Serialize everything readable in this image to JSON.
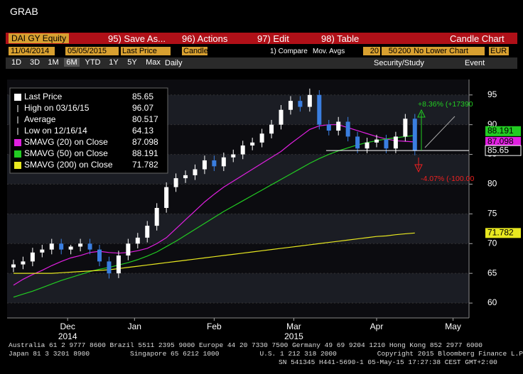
{
  "toolbar": {
    "title": "GRAB",
    "security": "DAI GY Equity",
    "menu": [
      "95) Save As...",
      "96) Actions",
      "97) Edit",
      "98) Table"
    ],
    "chart_type": "Candle Chart",
    "start_date": "11/04/2014",
    "end_date": "05/05/2015",
    "field": "Last Price",
    "style": "Candle",
    "compare": "1) Compare",
    "mov_avgs": "Mov. Avgs",
    "periods": [
      20,
      50,
      200
    ],
    "lower": "No Lower Chart",
    "currency": "EUR",
    "ranges": [
      "1D",
      "3D",
      "1M",
      "6M",
      "YTD",
      "1Y",
      "5Y",
      "Max"
    ],
    "frequency": "Daily",
    "security_study": "Security/Study",
    "event": "Event"
  },
  "chart_data": {
    "type": "candlestick",
    "x": [
      0,
      3,
      6,
      9,
      12,
      15,
      18,
      21,
      24,
      27,
      30,
      33,
      36,
      39,
      42,
      45,
      48,
      51,
      54,
      57,
      60,
      63,
      66,
      69,
      72,
      75,
      78,
      81,
      84,
      87,
      90,
      93,
      96,
      99,
      102,
      105,
      108,
      111,
      114,
      117,
      120,
      123,
      126
    ],
    "candles": {
      "name": "Last Price",
      "last": 85.65,
      "up_color": "#ffffff",
      "down_color": "#3a7ee0",
      "open": [
        66,
        66.5,
        67,
        68.5,
        69,
        70,
        69,
        69.5,
        70,
        69,
        67,
        65,
        68,
        70,
        71,
        73,
        76,
        79.5,
        81,
        81.5,
        82.5,
        84,
        83,
        84.5,
        85,
        86.5,
        87,
        88.5,
        90,
        92.5,
        94,
        93,
        95,
        90,
        89,
        90.5,
        88,
        86,
        87,
        87.5,
        86,
        88,
        91
      ],
      "high": [
        67.3,
        67.8,
        69.3,
        69.8,
        70.8,
        70.8,
        69.8,
        70.8,
        70.8,
        69.8,
        67.8,
        68.8,
        70.8,
        71.8,
        73.8,
        76.8,
        80.3,
        81.8,
        82.3,
        83.3,
        84.8,
        84.8,
        85.3,
        85.8,
        87.3,
        87.8,
        89.3,
        90.8,
        93.3,
        94.8,
        94.8,
        96.07,
        95.8,
        90.8,
        91.3,
        91.3,
        88.8,
        87.8,
        88.3,
        88.3,
        88.8,
        91.8,
        91.8
      ],
      "low": [
        65.2,
        65.7,
        66.2,
        67.7,
        68.2,
        68.2,
        68.2,
        68.7,
        68.2,
        66.2,
        64.13,
        64.2,
        67.2,
        69.2,
        70.2,
        72.2,
        75.2,
        78.7,
        80.2,
        80.7,
        81.7,
        82.2,
        82.2,
        83.7,
        84.2,
        85.7,
        86.2,
        87.7,
        89.2,
        91.7,
        92.2,
        92.2,
        89.2,
        88.2,
        88.2,
        87.2,
        85.2,
        85.2,
        86.2,
        85.2,
        85.2,
        87.2,
        84.85
      ],
      "close": [
        66.5,
        67,
        68.5,
        69,
        70,
        69,
        69.5,
        70,
        69,
        67,
        65,
        68,
        70,
        71,
        73,
        76,
        79.5,
        81,
        81.5,
        82.5,
        84,
        83,
        84.5,
        85,
        86.5,
        87,
        88.5,
        90,
        92.5,
        94,
        93,
        95,
        90,
        89,
        90.5,
        88,
        86,
        87,
        87.5,
        86,
        88,
        91,
        85.65
      ]
    },
    "stats": [
      {
        "label": "High on 03/16/15",
        "value": 96.07
      },
      {
        "label": "Average",
        "value": 80.517
      },
      {
        "label": "Low on 12/16/14",
        "value": 64.13
      }
    ],
    "series": [
      {
        "name": "SMAVG (20) on Close",
        "color": "#e020e0",
        "last": 87.098,
        "values": [
          63,
          64,
          64.8,
          65.5,
          66.3,
          67,
          67.6,
          68,
          68.5,
          68.7,
          68.5,
          68.4,
          68.5,
          68.8,
          69.2,
          70,
          71,
          72.5,
          74,
          75.5,
          77,
          78.3,
          79.5,
          80.5,
          81.5,
          82.5,
          83.5,
          84.5,
          85.5,
          86.8,
          88,
          89.2,
          89.8,
          90,
          90,
          89.5,
          89,
          88.5,
          88,
          87.6,
          87.3,
          87.2,
          87.098
        ]
      },
      {
        "name": "SMAVG (50) on Close",
        "color": "#22cc22",
        "last": 88.191,
        "values": [
          61,
          61.5,
          62,
          62.6,
          63.2,
          63.8,
          64.3,
          64.8,
          65.3,
          65.7,
          66,
          66.4,
          66.8,
          67.3,
          67.9,
          68.6,
          69.5,
          70.4,
          71.4,
          72.4,
          73.4,
          74.4,
          75.4,
          76.3,
          77.2,
          78.1,
          79,
          79.9,
          80.8,
          81.7,
          82.6,
          83.5,
          84.3,
          85,
          85.6,
          86.1,
          86.6,
          87,
          87.3,
          87.6,
          87.8,
          88,
          88.191
        ]
      },
      {
        "name": "SMAVG (200) on Close",
        "color": "#e8e820",
        "last": 71.782,
        "values": [
          65,
          65,
          65,
          65,
          65,
          65.1,
          65.2,
          65.3,
          65.4,
          65.5,
          65.6,
          65.8,
          66,
          66.2,
          66.4,
          66.6,
          66.8,
          67,
          67.2,
          67.4,
          67.6,
          67.8,
          68,
          68.2,
          68.4,
          68.6,
          68.8,
          69,
          69.2,
          69.4,
          69.6,
          69.8,
          70,
          70.2,
          70.4,
          70.6,
          70.8,
          71,
          71.2,
          71.3,
          71.5,
          71.65,
          71.782
        ]
      }
    ],
    "annotations": [
      {
        "text": "+8.36% (+17390",
        "color": "#22cc22"
      },
      {
        "text": "-4.07% (-100.00",
        "color": "#ee2020"
      }
    ],
    "xlim": [
      -2,
      143
    ],
    "ylim": [
      57.5,
      97.6
    ],
    "xticks": [
      {
        "value": 17,
        "label": "Dec"
      },
      {
        "value": 38,
        "label": "Jan"
      },
      {
        "value": 63,
        "label": "Feb"
      },
      {
        "value": 88,
        "label": "Mar"
      },
      {
        "value": 114,
        "label": "Apr"
      },
      {
        "value": 138,
        "label": "May"
      }
    ],
    "year_labels": [
      {
        "value": 17,
        "label": "2014"
      },
      {
        "value": 88,
        "label": "2015"
      }
    ],
    "yticks": [
      60,
      65,
      70,
      75,
      80,
      85,
      90,
      95
    ],
    "grid": true
  },
  "footer": [
    "Australia 61 2 9777 8600 Brazil 5511 2395 9000 Europe 44 20 7330 7500 Germany 49 69 9204 1210 Hong Kong 852 2977 6000",
    "Japan 81 3 3201 8900          Singapore 65 6212 1000          U.S. 1 212 318 2000          Copyright 2015 Bloomberg Finance L.P.",
    "SN 541345 H441-5690-1 05-May-15 17:27:38 CEST GMT+2:00"
  ]
}
